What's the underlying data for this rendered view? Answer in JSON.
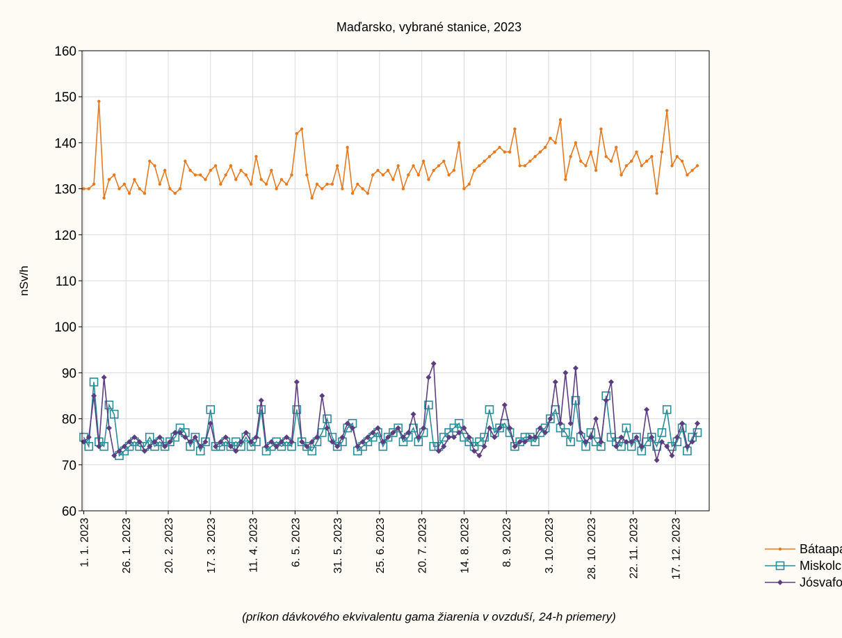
{
  "chart_data": {
    "type": "line",
    "title": "Maďarsko, vybrané stanice, 2023",
    "ylabel": "nSv/h",
    "note": "(príkon dávkového ekvivalentu gama žiarenia v ovzduší, 24-h priemery)",
    "x": [
      1,
      4,
      7,
      10,
      13,
      16,
      19,
      22,
      25,
      28,
      31,
      34,
      37,
      40,
      43,
      46,
      49,
      52,
      55,
      58,
      61,
      64,
      67,
      70,
      73,
      76,
      79,
      82,
      85,
      88,
      91,
      94,
      97,
      100,
      103,
      106,
      109,
      112,
      115,
      118,
      121,
      124,
      127,
      130,
      133,
      136,
      139,
      142,
      145,
      148,
      151,
      154,
      157,
      160,
      163,
      166,
      169,
      172,
      175,
      178,
      181,
      184,
      187,
      190,
      193,
      196,
      199,
      202,
      205,
      208,
      211,
      214,
      217,
      220,
      223,
      226,
      229,
      232,
      235,
      238,
      241,
      244,
      247,
      250,
      253,
      256,
      259,
      262,
      265,
      268,
      271,
      274,
      277,
      280,
      283,
      286,
      289,
      292,
      295,
      298,
      301,
      304,
      307,
      310,
      313,
      316,
      319,
      322,
      325,
      328,
      331,
      334,
      337,
      340,
      343,
      346,
      349,
      352,
      355,
      358,
      361,
      364
    ],
    "series": [
      {
        "name": "Bátaapati",
        "color": "#e8791f",
        "marker": "dot",
        "values": [
          130,
          130,
          131,
          149,
          128,
          132,
          133,
          130,
          131,
          129,
          132,
          130,
          129,
          136,
          135,
          131,
          134,
          130,
          129,
          130,
          136,
          134,
          133,
          133,
          132,
          134,
          135,
          131,
          133,
          135,
          132,
          134,
          133,
          131,
          137,
          132,
          131,
          134,
          130,
          132,
          131,
          133,
          142,
          143,
          133,
          128,
          131,
          130,
          131,
          131,
          135,
          130,
          139,
          129,
          131,
          130,
          129,
          133,
          134,
          133,
          134,
          132,
          135,
          130,
          133,
          135,
          133,
          136,
          132,
          134,
          135,
          136,
          133,
          134,
          140,
          130,
          131,
          134,
          135,
          136,
          137,
          138,
          139,
          138,
          138,
          143,
          135,
          135,
          136,
          137,
          138,
          139,
          141,
          140,
          145,
          132,
          137,
          140,
          136,
          135,
          138,
          134,
          143,
          137,
          136,
          139,
          133,
          135,
          136,
          138,
          135,
          136,
          137,
          129,
          138,
          147,
          135,
          137,
          136,
          133,
          134,
          135
        ]
      },
      {
        "name": "Miskolc",
        "color": "#2a8c99",
        "marker": "square",
        "values": [
          76,
          74,
          88,
          75,
          74,
          83,
          81,
          72,
          73,
          74,
          75,
          74,
          74,
          76,
          74,
          75,
          74,
          75,
          76,
          78,
          77,
          74,
          76,
          73,
          75,
          82,
          74,
          74,
          75,
          74,
          75,
          74,
          76,
          74,
          75,
          82,
          73,
          74,
          75,
          74,
          75,
          74,
          82,
          75,
          74,
          73,
          75,
          77,
          80,
          76,
          74,
          75,
          78,
          79,
          73,
          74,
          75,
          76,
          77,
          74,
          76,
          77,
          78,
          75,
          76,
          78,
          75,
          77,
          83,
          74,
          74,
          76,
          77,
          78,
          79,
          76,
          75,
          74,
          75,
          76,
          82,
          77,
          78,
          79,
          77,
          74,
          75,
          76,
          76,
          75,
          77,
          78,
          80,
          82,
          78,
          77,
          75,
          84,
          76,
          74,
          77,
          75,
          74,
          85,
          76,
          75,
          74,
          78,
          74,
          76,
          73,
          75,
          76,
          74,
          77,
          82,
          74,
          75,
          78,
          73,
          76,
          77
        ]
      },
      {
        "name": "Jósvafo",
        "color": "#5c3d7f",
        "marker": "diamond",
        "values": [
          75,
          76,
          85,
          74,
          89,
          78,
          72,
          73,
          74,
          75,
          76,
          75,
          73,
          74,
          75,
          76,
          74,
          75,
          77,
          77,
          76,
          75,
          76,
          74,
          75,
          79,
          74,
          75,
          76,
          74,
          73,
          75,
          77,
          75,
          76,
          84,
          74,
          75,
          74,
          75,
          76,
          75,
          88,
          75,
          74,
          75,
          76,
          85,
          78,
          75,
          74,
          76,
          79,
          78,
          74,
          75,
          76,
          77,
          78,
          75,
          76,
          77,
          78,
          76,
          77,
          81,
          76,
          78,
          89,
          92,
          73,
          74,
          76,
          76,
          77,
          78,
          76,
          73,
          72,
          74,
          78,
          76,
          78,
          83,
          78,
          74,
          75,
          75,
          76,
          76,
          78,
          77,
          80,
          88,
          79,
          90,
          79,
          91,
          77,
          75,
          76,
          80,
          75,
          84,
          88,
          74,
          76,
          75,
          75,
          76,
          74,
          82,
          76,
          71,
          75,
          74,
          72,
          76,
          79,
          74,
          75,
          79
        ]
      }
    ],
    "xlim": [
      0,
      371
    ],
    "xticks": [
      {
        "value": 1,
        "label": "1. 1. 2023"
      },
      {
        "value": 26,
        "label": "26. 1. 2023"
      },
      {
        "value": 51,
        "label": "20. 2. 2023"
      },
      {
        "value": 76,
        "label": "17. 3. 2023"
      },
      {
        "value": 101,
        "label": "11. 4. 2023"
      },
      {
        "value": 126,
        "label": "6. 5. 2023"
      },
      {
        "value": 151,
        "label": "31. 5. 2023"
      },
      {
        "value": 176,
        "label": "25. 6. 2023"
      },
      {
        "value": 201,
        "label": "20. 7. 2023"
      },
      {
        "value": 226,
        "label": "14. 8. 2023"
      },
      {
        "value": 251,
        "label": "8. 9. 2023"
      },
      {
        "value": 276,
        "label": "3. 10. 2023"
      },
      {
        "value": 301,
        "label": "28. 10. 2023"
      },
      {
        "value": 326,
        "label": "22. 11. 2023"
      },
      {
        "value": 351,
        "label": "17. 12. 2023"
      }
    ],
    "ylim": [
      60,
      160
    ],
    "yticks": [
      60,
      70,
      80,
      90,
      100,
      110,
      120,
      130,
      140,
      150,
      160
    ],
    "grid": true,
    "legend": "bottom-right"
  }
}
